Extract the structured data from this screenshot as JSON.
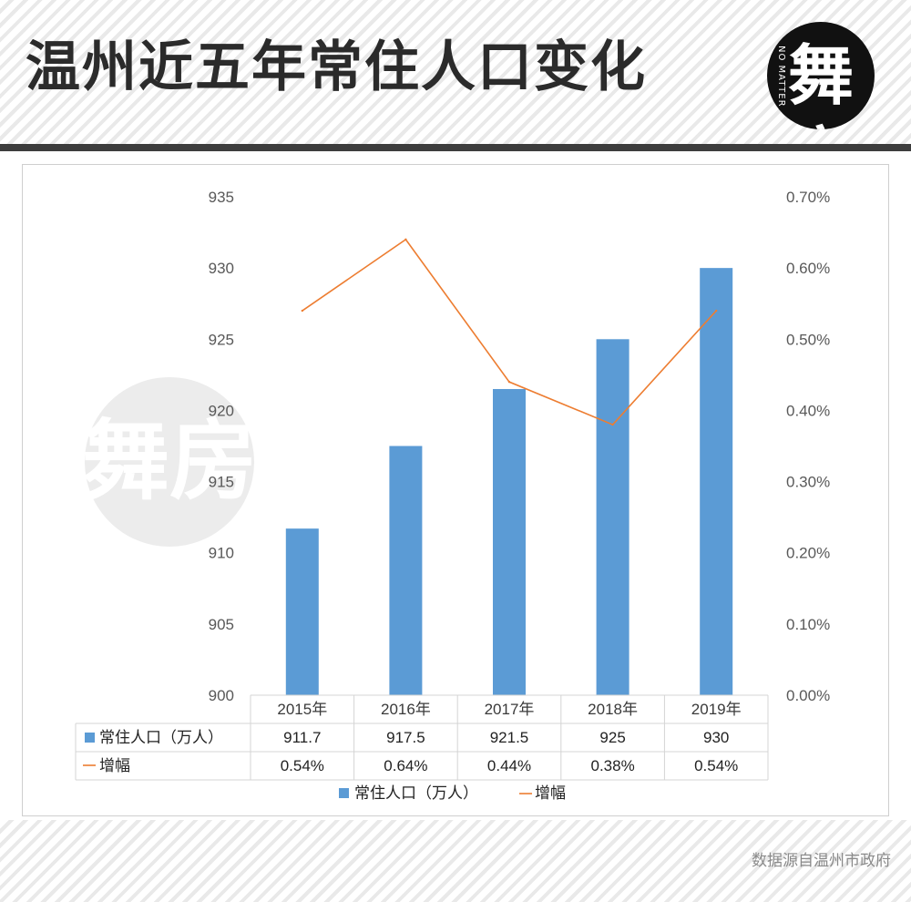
{
  "header": {
    "title": "温州近五年常住人口变化",
    "logo_glyph": "舞房",
    "logo_side_text": "NO MATTER"
  },
  "footer": {
    "source": "数据源自温州市政府"
  },
  "colors": {
    "bar": "#5b9bd5",
    "line": "#ed7d31",
    "header_text": "#2b2b2b",
    "divider": "#3d3d3d"
  },
  "chart_data": {
    "type": "bar",
    "categories": [
      "2015年",
      "2016年",
      "2017年",
      "2018年",
      "2019年"
    ],
    "series": [
      {
        "name": "常住人口（万人）",
        "type": "bar",
        "axis": "left",
        "values": [
          911.7,
          917.5,
          921.5,
          925,
          930
        ],
        "labels": [
          "911.7",
          "917.5",
          "921.5",
          "925",
          "930"
        ]
      },
      {
        "name": "增幅",
        "type": "line",
        "axis": "right",
        "values": [
          0.54,
          0.64,
          0.44,
          0.38,
          0.54
        ],
        "labels": [
          "0.54%",
          "0.64%",
          "0.44%",
          "0.38%",
          "0.54%"
        ]
      }
    ],
    "y_left": {
      "min": 900,
      "max": 935,
      "step": 5,
      "ticks": [
        "900",
        "905",
        "910",
        "915",
        "920",
        "925",
        "930",
        "935"
      ]
    },
    "y_right": {
      "min": 0,
      "max": 0.7,
      "step": 0.1,
      "ticks": [
        "0.00%",
        "0.10%",
        "0.20%",
        "0.30%",
        "0.40%",
        "0.50%",
        "0.60%",
        "0.70%"
      ]
    },
    "grid": false,
    "data_table": true,
    "legend_position": "bottom"
  }
}
